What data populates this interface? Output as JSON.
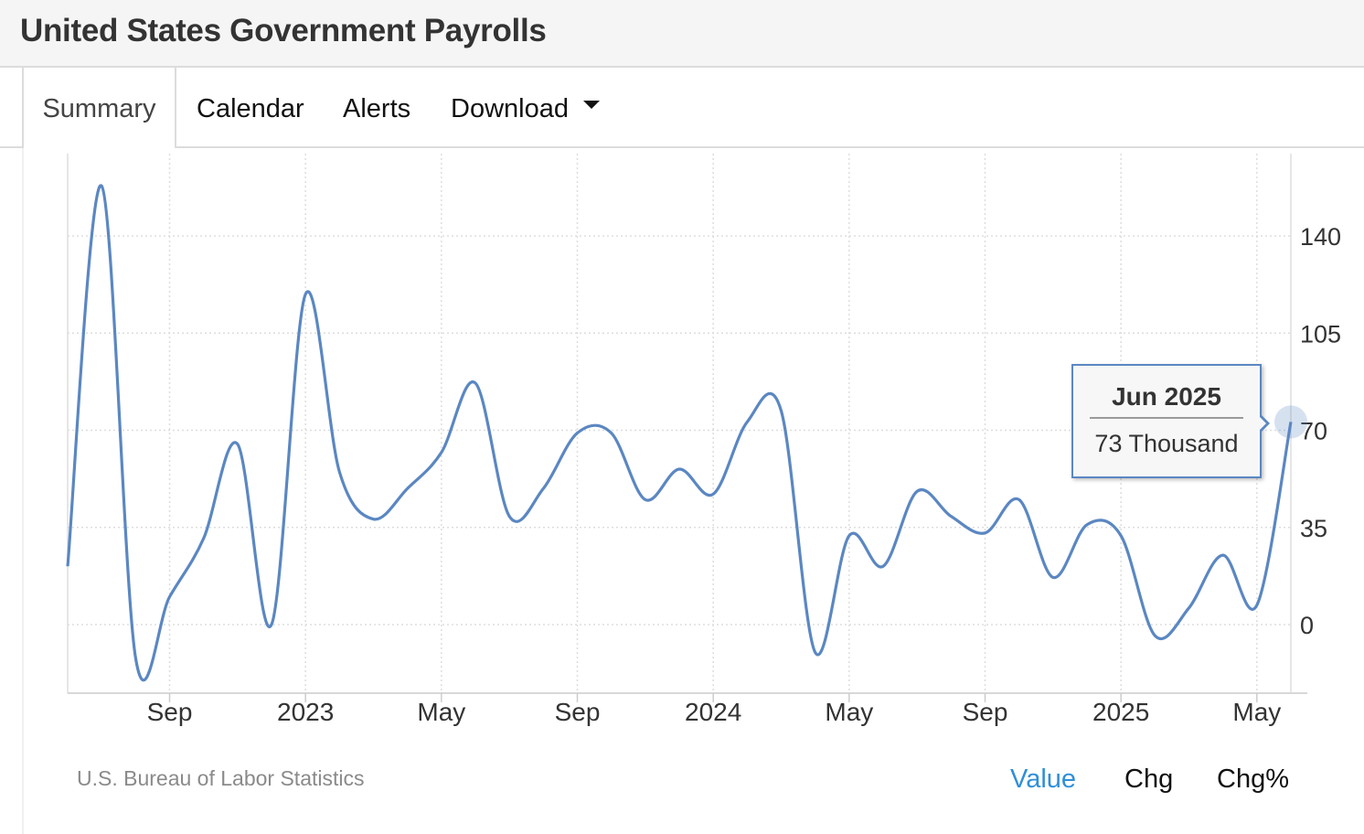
{
  "header": {
    "title": "United States Government Payrolls"
  },
  "tabs": [
    {
      "label": "Summary",
      "active": true
    },
    {
      "label": "Calendar"
    },
    {
      "label": "Alerts"
    },
    {
      "label": "Download",
      "dropdown": true
    }
  ],
  "footer": {
    "source": "U.S. Bureau of Labor Statistics",
    "modes": [
      {
        "label": "Value",
        "active": true
      },
      {
        "label": "Chg"
      },
      {
        "label": "Chg%"
      }
    ]
  },
  "tooltip": {
    "title": "Jun 2025",
    "value": "73 Thousand"
  },
  "colors": {
    "line": "#5b87c2",
    "active_mode": "#2f8fd8",
    "grid": "#dddddd"
  },
  "chart_data": {
    "type": "line",
    "title": "",
    "xlabel": "",
    "ylabel": "",
    "ylim": [
      -25,
      170
    ],
    "y_ticks": [
      0,
      35,
      70,
      105,
      140
    ],
    "y_axis_side": "right",
    "grid": true,
    "x_ticks": [
      {
        "label": "Sep",
        "date": "2022-09"
      },
      {
        "label": "2023",
        "date": "2023-01"
      },
      {
        "label": "May",
        "date": "2023-05"
      },
      {
        "label": "Sep",
        "date": "2023-09"
      },
      {
        "label": "2024",
        "date": "2024-01"
      },
      {
        "label": "May",
        "date": "2024-05"
      },
      {
        "label": "Sep",
        "date": "2024-09"
      },
      {
        "label": "2025",
        "date": "2025-01"
      },
      {
        "label": "May",
        "date": "2025-05"
      }
    ],
    "series": [
      {
        "x": [
          "2022-06",
          "2022-07",
          "2022-08",
          "2022-09",
          "2022-10",
          "2022-11",
          "2022-12",
          "2023-01",
          "2023-02",
          "2023-03",
          "2023-04",
          "2023-05",
          "2023-06",
          "2023-07",
          "2023-08",
          "2023-09",
          "2023-10",
          "2023-11",
          "2023-12",
          "2024-01",
          "2024-02",
          "2024-03",
          "2024-04",
          "2024-05",
          "2024-06",
          "2024-07",
          "2024-08",
          "2024-09",
          "2024-10",
          "2024-11",
          "2024-12",
          "2025-01",
          "2025-02",
          "2025-03",
          "2025-04",
          "2025-05",
          "2025-06"
        ],
        "values": [
          21,
          158,
          -12,
          10,
          31,
          65,
          0,
          119,
          55,
          38,
          49,
          62,
          87,
          39,
          49,
          69,
          69,
          45,
          56,
          47,
          73,
          77,
          -10,
          32,
          21,
          48,
          39,
          33,
          45,
          17,
          36,
          32,
          -4,
          6,
          25,
          7,
          73
        ]
      }
    ]
  }
}
